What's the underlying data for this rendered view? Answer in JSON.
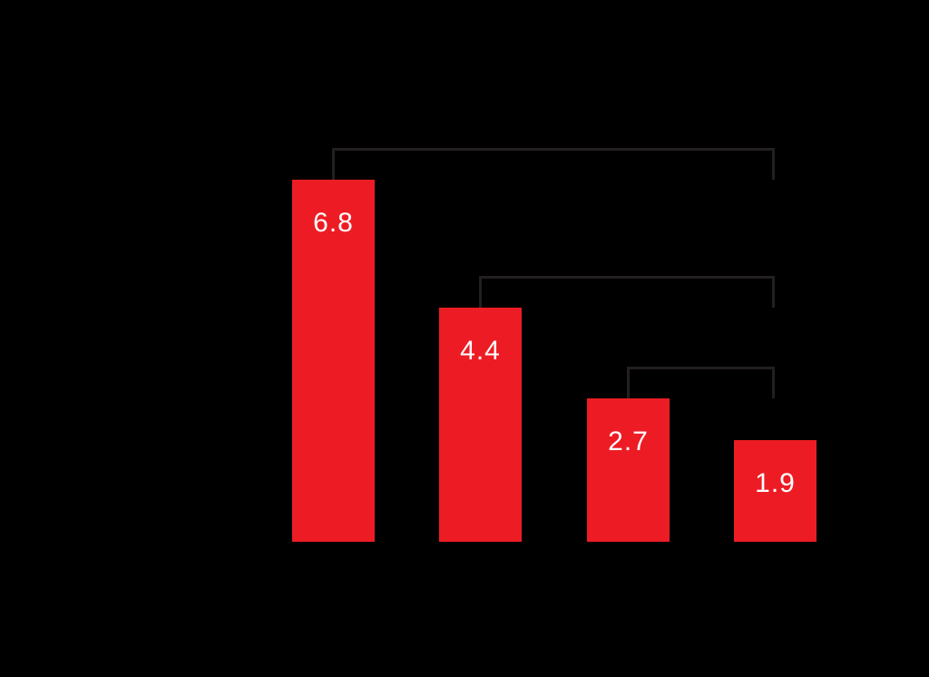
{
  "page": {
    "background_color": "#000000"
  },
  "chart_data": {
    "type": "bar",
    "values": [
      6.8,
      4.4,
      2.7,
      1.9
    ],
    "data_labels": [
      "6.8",
      "4.4",
      "2.7",
      "1.9"
    ],
    "title": "",
    "xlabel": "",
    "ylabel": "",
    "ylim": [
      0,
      8
    ],
    "grid": false,
    "legend": false,
    "bar_color": "#ED1C24",
    "data_label_color": "#FFFFFF",
    "bracket_color": "#231F20",
    "brackets": [
      {
        "from_bar": 0,
        "to_bar": 3
      },
      {
        "from_bar": 1,
        "to_bar": 3
      },
      {
        "from_bar": 2,
        "to_bar": 3
      }
    ]
  }
}
